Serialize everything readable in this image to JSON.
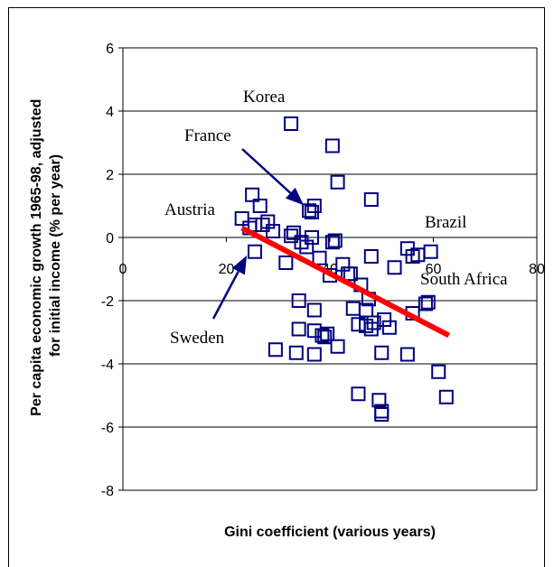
{
  "chart_data": {
    "type": "scatter",
    "title": "",
    "xlabel": "Gini coefficient (various years)",
    "ylabel_line1": "Per capita economic growth 1965-98, adjusted",
    "ylabel_line2": "for initial income (% per year)",
    "xlim": [
      0,
      80
    ],
    "ylim": [
      -8,
      6
    ],
    "x_ticks": [
      0,
      20,
      40,
      60,
      80
    ],
    "y_ticks": [
      -8,
      -6,
      -4,
      -2,
      0,
      2,
      4,
      6
    ],
    "grid": "horizontal",
    "marker": "hollow-square",
    "marker_color": "#000080",
    "trend_color": "#ff0000",
    "trendline": {
      "x": [
        23,
        63
      ],
      "y": [
        0.3,
        -3.1
      ]
    },
    "annotations": [
      {
        "text": "Korea",
        "point": [
          33,
          3.6
        ],
        "arrow": false
      },
      {
        "text": "France",
        "point": [
          36,
          0.85
        ],
        "arrow": true
      },
      {
        "text": "Austria",
        "point": [
          23,
          0.6
        ],
        "arrow": false
      },
      {
        "text": "Brazil",
        "point": [
          60,
          -0.4
        ],
        "arrow": false
      },
      {
        "text": "South Africa",
        "point": [
          59,
          -2
        ],
        "arrow": false
      },
      {
        "text": "Sweden",
        "point": [
          25,
          -0.4
        ],
        "arrow": true
      }
    ],
    "points": [
      [
        23,
        0.6
      ],
      [
        24.5,
        0.3
      ],
      [
        25,
        1.35
      ],
      [
        25.5,
        0.4
      ],
      [
        25.5,
        -0.45
      ],
      [
        26.5,
        1.0
      ],
      [
        27,
        0.4
      ],
      [
        28,
        0.5
      ],
      [
        29,
        0.2
      ],
      [
        29.5,
        -3.55
      ],
      [
        31.5,
        -0.8
      ],
      [
        32.5,
        3.6
      ],
      [
        32.5,
        0.05
      ],
      [
        33,
        0.15
      ],
      [
        33.5,
        -3.65
      ],
      [
        34,
        -2.9
      ],
      [
        34,
        -2.0
      ],
      [
        34.5,
        -0.15
      ],
      [
        35.5,
        -0.3
      ],
      [
        36,
        0.85
      ],
      [
        36.5,
        0.8
      ],
      [
        36.5,
        0.0
      ],
      [
        37,
        1.0
      ],
      [
        37,
        -2.3
      ],
      [
        37,
        -2.95
      ],
      [
        37,
        -3.7
      ],
      [
        38,
        -0.65
      ],
      [
        38.5,
        -3.1
      ],
      [
        39,
        -3.15
      ],
      [
        39.5,
        -3.05
      ],
      [
        40,
        -1.2
      ],
      [
        40.5,
        -0.15
      ],
      [
        40.5,
        2.9
      ],
      [
        41,
        -0.1
      ],
      [
        41.5,
        -3.45
      ],
      [
        41.5,
        1.75
      ],
      [
        42.5,
        -0.85
      ],
      [
        43.5,
        -1.15
      ],
      [
        44,
        -1.15
      ],
      [
        44.5,
        -2.25
      ],
      [
        45.5,
        -4.95
      ],
      [
        45.5,
        -2.75
      ],
      [
        46,
        -1.5
      ],
      [
        47,
        -2.3
      ],
      [
        47,
        -2.8
      ],
      [
        47.5,
        -1.95
      ],
      [
        48,
        1.2
      ],
      [
        48,
        -0.6
      ],
      [
        48,
        -2.9
      ],
      [
        48.5,
        -2.7
      ],
      [
        49.5,
        -5.15
      ],
      [
        50,
        -5.5
      ],
      [
        50,
        -5.6
      ],
      [
        50,
        -3.65
      ],
      [
        50.5,
        -2.6
      ],
      [
        51.5,
        -2.85
      ],
      [
        52.5,
        -0.95
      ],
      [
        55,
        -0.35
      ],
      [
        55,
        -3.7
      ],
      [
        56,
        -0.6
      ],
      [
        56,
        -2.4
      ],
      [
        57,
        -0.55
      ],
      [
        58.5,
        -2.1
      ],
      [
        59,
        -2.05
      ],
      [
        59.5,
        -0.45
      ],
      [
        61,
        -4.25
      ],
      [
        62.5,
        -5.05
      ]
    ]
  }
}
